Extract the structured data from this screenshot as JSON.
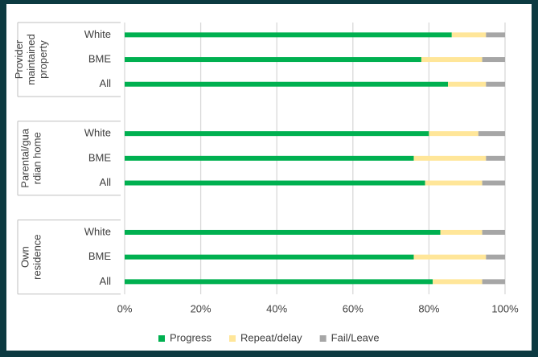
{
  "chart_data": {
    "type": "stacked_bar_horizontal",
    "groups": [
      {
        "label": [
          "Provider",
          "maintained",
          "property"
        ],
        "categories": [
          "White",
          "BME",
          "All"
        ]
      },
      {
        "label": [
          "Parental/gua",
          "rdian home"
        ],
        "categories": [
          "White",
          "BME",
          "All"
        ]
      },
      {
        "label": [
          "Own",
          "residence"
        ],
        "categories": [
          "White",
          "BME",
          "All"
        ]
      }
    ],
    "series": [
      {
        "name": "Progress",
        "color": "#00b050",
        "values": [
          86,
          78,
          85,
          80,
          76,
          79,
          83,
          76,
          81
        ]
      },
      {
        "name": "Repeat/delay",
        "color": "#ffe699",
        "values": [
          9,
          16,
          10,
          13,
          19,
          15,
          11,
          19,
          13
        ]
      },
      {
        "name": "Fail/Leave",
        "color": "#a6a6a6",
        "values": [
          5,
          6,
          5,
          7,
          5,
          6,
          6,
          5,
          6
        ]
      }
    ],
    "xlim": [
      0,
      100
    ],
    "xticks": [
      {
        "value": 0,
        "label": "0%"
      },
      {
        "value": 20,
        "label": "20%"
      },
      {
        "value": 40,
        "label": "40%"
      },
      {
        "value": 60,
        "label": "60%"
      },
      {
        "value": 80,
        "label": "80%"
      },
      {
        "value": 100,
        "label": "100%"
      }
    ],
    "grid": true,
    "legend": "bottom"
  }
}
